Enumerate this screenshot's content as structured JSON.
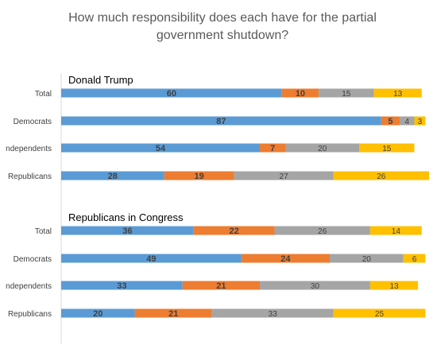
{
  "chart_data": {
    "type": "bar",
    "orientation": "horizontal",
    "stacked": true,
    "title_lines": [
      "How much responsibility does each have for the partial",
      "government shutdown?"
    ],
    "categories": [
      "Total",
      "Democrats",
      "Independents",
      "Republicans"
    ],
    "category_labels_shown": [
      "Total",
      "Democrats",
      "ndependents",
      "Republicans"
    ],
    "xlim": [
      0,
      100
    ],
    "legend": "none",
    "grid": false,
    "colors": [
      "#5b9bd5",
      "#ed7d31",
      "#a5a5a5",
      "#ffc000"
    ],
    "groups": [
      {
        "label": "Donald Trump",
        "rows": [
          [
            60,
            10,
            15,
            13
          ],
          [
            87,
            5,
            4,
            3
          ],
          [
            54,
            7,
            20,
            15
          ],
          [
            28,
            19,
            27,
            26
          ]
        ]
      },
      {
        "label": "Republicans in Congress",
        "rows": [
          [
            36,
            22,
            26,
            14
          ],
          [
            49,
            24,
            20,
            6
          ],
          [
            33,
            21,
            30,
            13
          ],
          [
            20,
            21,
            33,
            25
          ]
        ]
      }
    ]
  }
}
